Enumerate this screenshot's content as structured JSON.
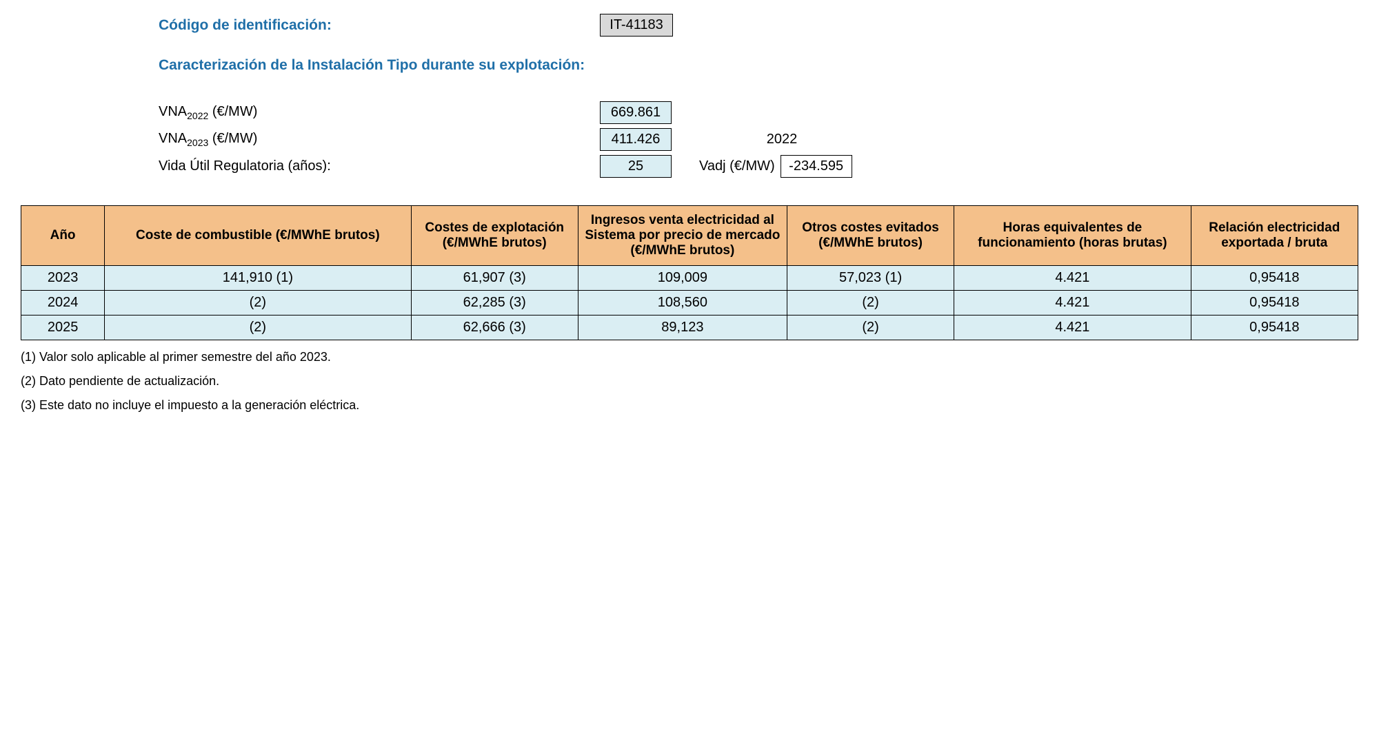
{
  "header": {
    "id_label": "Código de identificación:",
    "id_value": "IT-41183",
    "subtitle": "Caracterización de la Instalación Tipo durante su explotación:"
  },
  "characterization": {
    "vna2022_label_prefix": "VNA",
    "vna2022_label_sub": "2022",
    "vna_unit": " (€/MW)",
    "vna2023_label_sub": "2023",
    "vna2022_value": "669.861",
    "vna2023_value": "411.426",
    "life_label": "Vida Útil Regulatoria (años):",
    "life_value": "25",
    "year_ref": "2022",
    "vadj_label": "Vadj (€/MW)",
    "vadj_value": "-234.595"
  },
  "table": {
    "headers": {
      "year": "Año",
      "fuel": "Coste de combustible (€/MWhE brutos)",
      "opex": "Costes de explotación (€/MWhE brutos)",
      "income": "Ingresos venta electricidad al Sistema por precio de mercado (€/MWhE brutos)",
      "other": "Otros costes evitados (€/MWhE brutos)",
      "hours": "Horas equivalentes de funcionamiento (horas brutas)",
      "ratio": "Relación electricidad exportada / bruta"
    },
    "rows": [
      {
        "year": "2023",
        "fuel": "141,910 (1)",
        "opex": "61,907 (3)",
        "income": "109,009",
        "other": "57,023 (1)",
        "hours": "4.421",
        "ratio": "0,95418"
      },
      {
        "year": "2024",
        "fuel": "(2)",
        "opex": "62,285 (3)",
        "income": "108,560",
        "other": "(2)",
        "hours": "4.421",
        "ratio": "0,95418"
      },
      {
        "year": "2025",
        "fuel": "(2)",
        "opex": "62,666 (3)",
        "income": "89,123",
        "other": "(2)",
        "hours": "4.421",
        "ratio": "0,95418"
      }
    ]
  },
  "footnotes": {
    "n1": "(1) Valor solo aplicable al primer semestre del año 2023.",
    "n2": "(2) Dato pendiente de actualización.",
    "n3": "(3) Este dato no incluye el impuesto a la generación eléctrica."
  },
  "style": {
    "header_color": "#1f6fa8",
    "th_bg": "#f4c08a",
    "td_bg": "#daeef3",
    "code_bg": "#d9d9d9",
    "border_color": "#000000",
    "body_bg": "#ffffff"
  }
}
